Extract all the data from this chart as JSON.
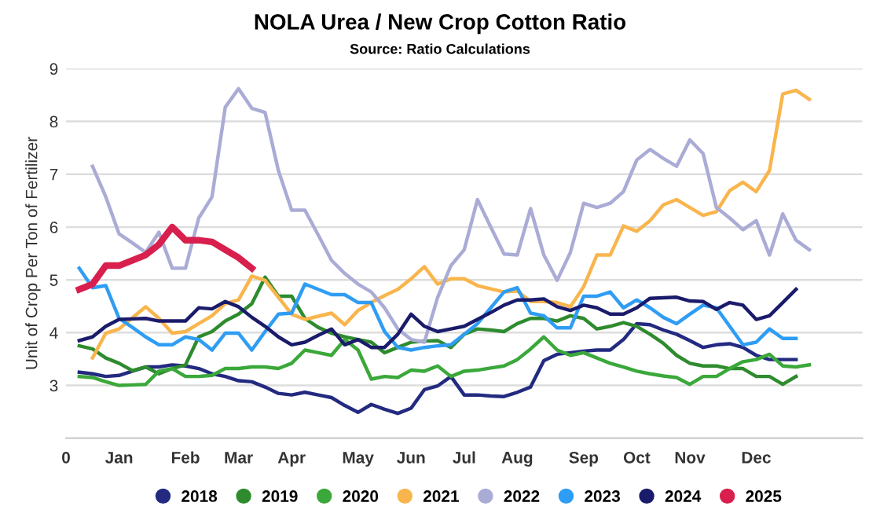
{
  "chart_data": {
    "type": "line",
    "title": "NOLA Urea / New Crop Cotton Ratio",
    "subtitle": "Source: Ratio Calculations",
    "ylabel": "Unit of Crop Per Ton of Fertilizer",
    "categories": [
      "0",
      null,
      null,
      null,
      "Jan",
      null,
      null,
      null,
      null,
      "Feb",
      null,
      null,
      null,
      "Mar",
      null,
      null,
      null,
      "Apr",
      null,
      null,
      null,
      null,
      "May",
      null,
      null,
      null,
      "Jun",
      null,
      null,
      null,
      "Jul",
      null,
      null,
      null,
      "Aug",
      null,
      null,
      null,
      null,
      "Sep",
      null,
      null,
      null,
      "Oct",
      null,
      null,
      null,
      "Nov",
      null,
      null,
      null,
      null,
      "Dec",
      null,
      null,
      null,
      null,
      null,
      null,
      null,
      null
    ],
    "ylim": [
      2,
      9
    ],
    "yticks": [
      {
        "value": 2,
        "label": null
      },
      3,
      4,
      5,
      6,
      7,
      8,
      9
    ],
    "grid": "y",
    "legend": "bottom",
    "marker": "none",
    "line_style": "solid",
    "series": [
      {
        "name": "2018",
        "color": "#232a80",
        "values": [
          null,
          3.25,
          3.22,
          3.17,
          3.19,
          3.27,
          3.35,
          3.35,
          3.39,
          3.37,
          3.32,
          3.22,
          3.17,
          3.09,
          3.07,
          2.97,
          2.85,
          2.82,
          2.87,
          2.82,
          2.77,
          2.62,
          2.49,
          2.64,
          2.55,
          2.47,
          2.57,
          2.92,
          2.99,
          3.17,
          2.82,
          2.82,
          2.8,
          2.79,
          2.87,
          2.97,
          3.47,
          3.59,
          3.62,
          3.65,
          3.67,
          3.67,
          3.87,
          4.17,
          4.15,
          4.05,
          3.97,
          3.85,
          3.72,
          3.77,
          3.79,
          3.72,
          3.57,
          3.49,
          3.49,
          3.49,
          null,
          null,
          null,
          null,
          null
        ]
      },
      {
        "name": "2019",
        "color": "#2e8b2e",
        "values": [
          null,
          3.75,
          3.69,
          3.52,
          3.42,
          3.28,
          3.35,
          3.22,
          3.32,
          3.39,
          3.92,
          4.02,
          4.22,
          4.35,
          4.55,
          5.05,
          4.69,
          4.69,
          4.27,
          4.1,
          3.99,
          3.92,
          3.87,
          3.82,
          3.62,
          3.72,
          3.82,
          3.84,
          3.85,
          3.72,
          3.97,
          4.07,
          4.05,
          4.02,
          4.17,
          4.27,
          4.27,
          4.22,
          4.32,
          4.27,
          4.07,
          4.12,
          4.19,
          4.12,
          3.97,
          3.8,
          3.57,
          3.42,
          3.37,
          3.37,
          3.32,
          3.32,
          3.17,
          3.17,
          3.02,
          3.17,
          null,
          null,
          null,
          null,
          null
        ]
      },
      {
        "name": "2020",
        "color": "#3aa83a",
        "values": [
          null,
          3.17,
          3.15,
          3.07,
          3.0,
          3.01,
          3.02,
          3.27,
          3.32,
          3.17,
          3.17,
          3.19,
          3.32,
          3.32,
          3.35,
          3.35,
          3.32,
          3.42,
          3.67,
          3.62,
          3.57,
          3.87,
          3.67,
          3.12,
          3.17,
          3.15,
          3.29,
          3.27,
          3.37,
          3.17,
          3.27,
          3.29,
          3.33,
          3.37,
          3.49,
          3.69,
          3.92,
          3.67,
          3.57,
          3.62,
          3.52,
          3.42,
          3.35,
          3.27,
          3.22,
          3.18,
          3.15,
          3.02,
          3.17,
          3.17,
          3.32,
          3.45,
          3.49,
          3.59,
          3.37,
          3.35,
          3.39,
          null,
          null,
          null,
          null
        ]
      },
      {
        "name": "2021",
        "color": "#f9b54d",
        "values": [
          null,
          null,
          3.52,
          3.99,
          4.07,
          4.28,
          4.49,
          4.27,
          3.99,
          4.02,
          4.17,
          4.32,
          4.55,
          4.62,
          5.07,
          4.99,
          4.67,
          4.35,
          4.25,
          4.31,
          4.37,
          4.15,
          4.42,
          4.57,
          4.7,
          4.82,
          5.02,
          5.25,
          4.92,
          5.02,
          5.02,
          4.89,
          4.83,
          4.77,
          4.79,
          4.59,
          4.59,
          4.57,
          4.49,
          4.87,
          5.47,
          5.47,
          6.02,
          5.92,
          6.12,
          6.42,
          6.52,
          6.37,
          6.22,
          6.29,
          6.69,
          6.85,
          6.67,
          7.07,
          8.52,
          8.59,
          8.42,
          null,
          null,
          null,
          null
        ]
      },
      {
        "name": "2022",
        "color": "#aaacd6",
        "values": [
          null,
          null,
          7.15,
          6.57,
          5.87,
          5.7,
          5.52,
          5.9,
          5.22,
          5.22,
          6.17,
          6.57,
          8.27,
          8.62,
          8.25,
          8.17,
          7.07,
          6.32,
          6.32,
          5.85,
          5.37,
          5.12,
          4.92,
          4.77,
          4.47,
          4.07,
          3.87,
          3.82,
          4.67,
          5.27,
          5.57,
          6.52,
          6.0,
          5.49,
          5.47,
          6.35,
          5.47,
          4.99,
          5.52,
          6.45,
          6.37,
          6.45,
          6.67,
          7.27,
          7.47,
          7.3,
          7.15,
          7.65,
          7.39,
          6.37,
          6.17,
          5.95,
          6.12,
          5.47,
          6.25,
          5.75,
          5.57,
          null,
          null,
          null,
          null
        ]
      },
      {
        "name": "2023",
        "color": "#2f9df4",
        "values": [
          null,
          5.22,
          4.85,
          4.89,
          4.27,
          4.1,
          3.92,
          3.77,
          3.77,
          3.92,
          3.87,
          3.67,
          3.99,
          3.99,
          3.67,
          4.02,
          4.35,
          4.37,
          4.92,
          4.82,
          4.72,
          4.72,
          4.57,
          4.57,
          4.02,
          3.72,
          3.67,
          3.72,
          3.75,
          3.77,
          3.97,
          4.17,
          4.47,
          4.77,
          4.85,
          4.37,
          4.32,
          4.09,
          4.09,
          4.69,
          4.69,
          4.77,
          4.47,
          4.62,
          4.47,
          4.29,
          4.17,
          4.35,
          4.52,
          4.47,
          4.12,
          3.77,
          3.82,
          4.07,
          3.89,
          3.89,
          null,
          null,
          null,
          null,
          null
        ]
      },
      {
        "name": "2024",
        "color": "#1b1b6b",
        "values": [
          null,
          3.85,
          3.92,
          4.12,
          4.25,
          4.26,
          4.27,
          4.22,
          4.22,
          4.22,
          4.47,
          4.45,
          4.59,
          4.49,
          4.29,
          4.12,
          3.92,
          3.77,
          3.82,
          3.95,
          4.07,
          3.77,
          3.87,
          3.72,
          3.72,
          3.97,
          4.35,
          4.12,
          4.02,
          4.07,
          4.12,
          4.25,
          4.38,
          4.52,
          4.62,
          4.62,
          4.64,
          4.49,
          4.42,
          4.52,
          4.47,
          4.35,
          4.35,
          4.47,
          4.65,
          4.66,
          4.67,
          4.6,
          4.59,
          4.44,
          4.57,
          4.52,
          4.25,
          4.32,
          4.57,
          4.82,
          null,
          null,
          null,
          null,
          null
        ]
      },
      {
        "name": "2025",
        "color": "#d81f4d",
        "values": [
          null,
          4.82,
          4.92,
          5.27,
          5.27,
          5.37,
          5.47,
          5.67,
          6.0,
          5.75,
          5.75,
          5.72,
          5.57,
          5.42,
          5.22,
          null,
          null,
          null,
          null,
          null,
          null,
          null,
          null,
          null,
          null,
          null,
          null,
          null,
          null,
          null,
          null,
          null,
          null,
          null,
          null,
          null,
          null,
          null,
          null,
          null,
          null,
          null,
          null,
          null,
          null,
          null,
          null,
          null,
          null,
          null,
          null,
          null,
          null,
          null,
          null,
          null,
          null,
          null,
          null,
          null,
          null
        ]
      }
    ]
  }
}
